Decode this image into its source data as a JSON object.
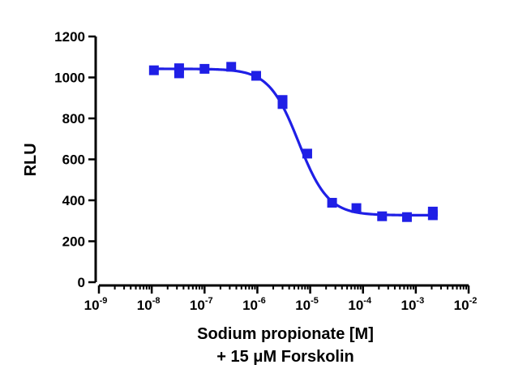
{
  "chart_data": {
    "type": "scatter",
    "xscale": "log",
    "xlabel": "Sodium propionate [M]",
    "xlabel_line2": "+ 15 μM Forskolin",
    "ylabel": "RLU",
    "xlim": [
      1e-09,
      0.01
    ],
    "ylim": [
      0,
      1200
    ],
    "x_tick_labels": [
      {
        "base": "10",
        "exp": "-9"
      },
      {
        "base": "10",
        "exp": "-8"
      },
      {
        "base": "10",
        "exp": "-7"
      },
      {
        "base": "10",
        "exp": "-6"
      },
      {
        "base": "10",
        "exp": "-5"
      },
      {
        "base": "10",
        "exp": "-4"
      },
      {
        "base": "10",
        "exp": "-3"
      },
      {
        "base": "10",
        "exp": "-2"
      }
    ],
    "y_ticks": [
      "0",
      "200",
      "400",
      "600",
      "800",
      "1000",
      "1200"
    ],
    "series_color": "#1f1fe6",
    "points": [
      {
        "x": 1.1e-08,
        "y": 1035
      },
      {
        "x": 3.3e-08,
        "y": 1045
      },
      {
        "x": 3.3e-08,
        "y": 1020
      },
      {
        "x": 1e-07,
        "y": 1042
      },
      {
        "x": 3.2e-07,
        "y": 1052
      },
      {
        "x": 9.5e-07,
        "y": 1008
      },
      {
        "x": 3e-06,
        "y": 890
      },
      {
        "x": 3e-06,
        "y": 870
      },
      {
        "x": 8.8e-06,
        "y": 628
      },
      {
        "x": 2.6e-05,
        "y": 388
      },
      {
        "x": 7.5e-05,
        "y": 362
      },
      {
        "x": 0.00023,
        "y": 322
      },
      {
        "x": 0.00068,
        "y": 318
      },
      {
        "x": 0.0021,
        "y": 345
      },
      {
        "x": 0.0021,
        "y": 327
      }
    ],
    "fit": {
      "top": 1042,
      "bottom": 327,
      "log_ic50": -5.22,
      "hill": -1.55
    }
  }
}
